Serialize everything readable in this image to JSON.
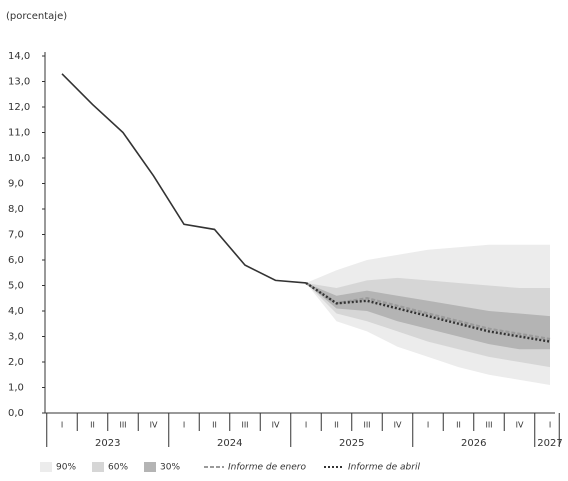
{
  "chart_data": {
    "type": "fan",
    "y_label": "(porcentaje)",
    "categories": [
      "I",
      "II",
      "III",
      "IV",
      "I",
      "II",
      "III",
      "IV",
      "I",
      "II",
      "III",
      "IV",
      "I",
      "II",
      "III",
      "IV",
      "I"
    ],
    "years": [
      "2023",
      "2024",
      "2025",
      "2026",
      "2027"
    ],
    "ylim": [
      0,
      14
    ],
    "yticks": [
      {
        "value": 0,
        "label": "0,0"
      },
      {
        "value": 1,
        "label": "1,0"
      },
      {
        "value": 2,
        "label": "2,0"
      },
      {
        "value": 3,
        "label": "3,0"
      },
      {
        "value": 4,
        "label": "4,0"
      },
      {
        "value": 5,
        "label": "5,0"
      },
      {
        "value": 6,
        "label": "6,0"
      },
      {
        "value": 7,
        "label": "7,0"
      },
      {
        "value": 8,
        "label": "8,0"
      },
      {
        "value": 9,
        "label": "9,0"
      },
      {
        "value": 10,
        "label": "10,0"
      },
      {
        "value": 11,
        "label": "11,0"
      },
      {
        "value": 12,
        "label": "12,0"
      },
      {
        "value": 13,
        "label": "13,0"
      },
      {
        "value": 14,
        "label": "14,0"
      }
    ],
    "bands": [
      {
        "name": "90%",
        "color": "#ececec",
        "upper": [
          null,
          null,
          null,
          null,
          null,
          null,
          null,
          null,
          5.1,
          5.6,
          6.0,
          6.2,
          6.4,
          6.5,
          6.6,
          6.6,
          6.6
        ],
        "lower": [
          null,
          null,
          null,
          null,
          null,
          null,
          null,
          null,
          5.1,
          3.6,
          3.2,
          2.6,
          2.2,
          1.8,
          1.5,
          1.3,
          1.1
        ]
      },
      {
        "name": "60%",
        "color": "#d6d6d6",
        "upper": [
          null,
          null,
          null,
          null,
          null,
          null,
          null,
          null,
          5.1,
          4.9,
          5.2,
          5.3,
          5.2,
          5.1,
          5.0,
          4.9,
          4.9
        ],
        "lower": [
          null,
          null,
          null,
          null,
          null,
          null,
          null,
          null,
          5.1,
          3.9,
          3.6,
          3.2,
          2.8,
          2.5,
          2.2,
          2.0,
          1.8
        ]
      },
      {
        "name": "30%",
        "color": "#b4b4b4",
        "upper": [
          null,
          null,
          null,
          null,
          null,
          null,
          null,
          null,
          5.1,
          4.6,
          4.8,
          4.6,
          4.4,
          4.2,
          4.0,
          3.9,
          3.8
        ],
        "lower": [
          null,
          null,
          null,
          null,
          null,
          null,
          null,
          null,
          5.1,
          4.1,
          4.0,
          3.6,
          3.3,
          3.0,
          2.7,
          2.5,
          2.5
        ]
      }
    ],
    "series": [
      {
        "values": [
          13.3,
          12.1,
          11.0,
          9.3,
          7.4,
          7.2,
          5.8,
          5.2,
          5.1,
          null,
          null,
          null,
          null,
          null,
          null,
          null,
          null
        ],
        "color": "#333333",
        "style": "solid"
      },
      {
        "name": "Informe de enero",
        "values": [
          null,
          null,
          null,
          null,
          null,
          null,
          null,
          null,
          5.1,
          4.3,
          4.5,
          4.2,
          3.9,
          3.6,
          3.3,
          3.1,
          2.9
        ],
        "color": "#9a9a9a",
        "style": "dashed"
      },
      {
        "name": "Informe de abril",
        "values": [
          null,
          null,
          null,
          null,
          null,
          null,
          null,
          null,
          5.1,
          4.3,
          4.4,
          4.1,
          3.8,
          3.5,
          3.2,
          3.0,
          2.8
        ],
        "color": "#333333",
        "style": "dotted"
      }
    ]
  }
}
